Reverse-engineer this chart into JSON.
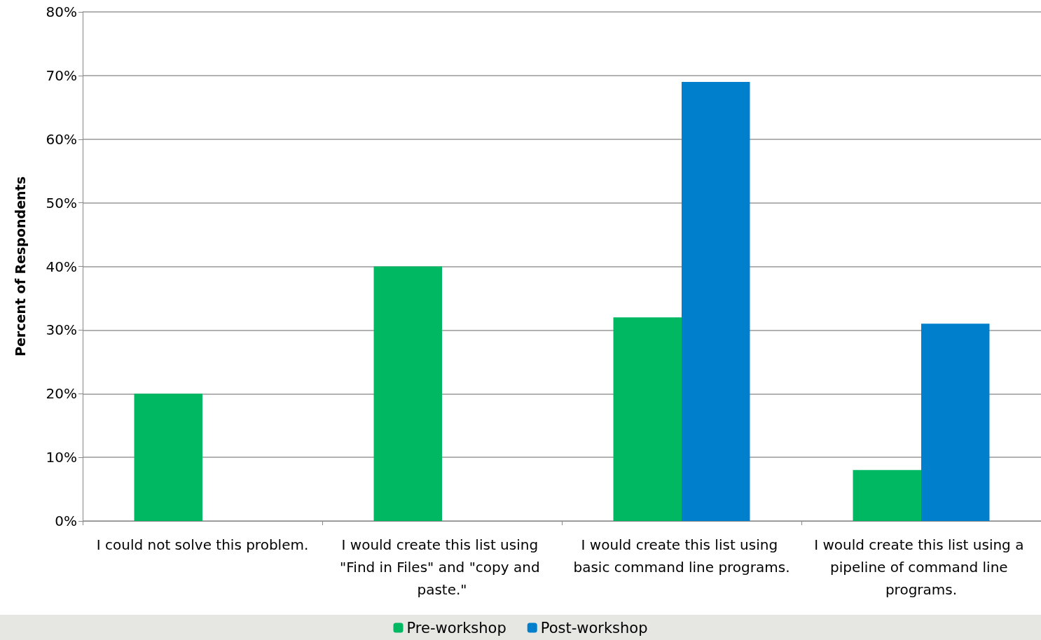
{
  "chart_data": {
    "type": "bar",
    "ylabel": "Percent of Respondents",
    "categories": [
      "I could not solve this problem.",
      "I would create this list using \"Find in Files\" and \"copy and paste.\"",
      "I would create this list using basic command line programs.",
      "I would create this list using a pipeline of command line programs."
    ],
    "series": [
      {
        "name": "Pre-workshop",
        "color": "#00b862",
        "values": [
          20,
          40,
          32,
          8
        ]
      },
      {
        "name": "Post-workshop",
        "color": "#0080cc",
        "values": [
          0,
          0,
          69,
          31
        ]
      }
    ],
    "ylim": [
      0,
      80
    ],
    "yticks": [
      {
        "value": 0,
        "label": "0%"
      },
      {
        "value": 10,
        "label": "10%"
      },
      {
        "value": 20,
        "label": "20%"
      },
      {
        "value": 30,
        "label": "30%"
      },
      {
        "value": 40,
        "label": "40%"
      },
      {
        "value": 50,
        "label": "50%"
      },
      {
        "value": 60,
        "label": "60%"
      },
      {
        "value": 70,
        "label": "70%"
      },
      {
        "value": 80,
        "label": "80%"
      }
    ],
    "grid": "y",
    "legend": "bottom"
  }
}
